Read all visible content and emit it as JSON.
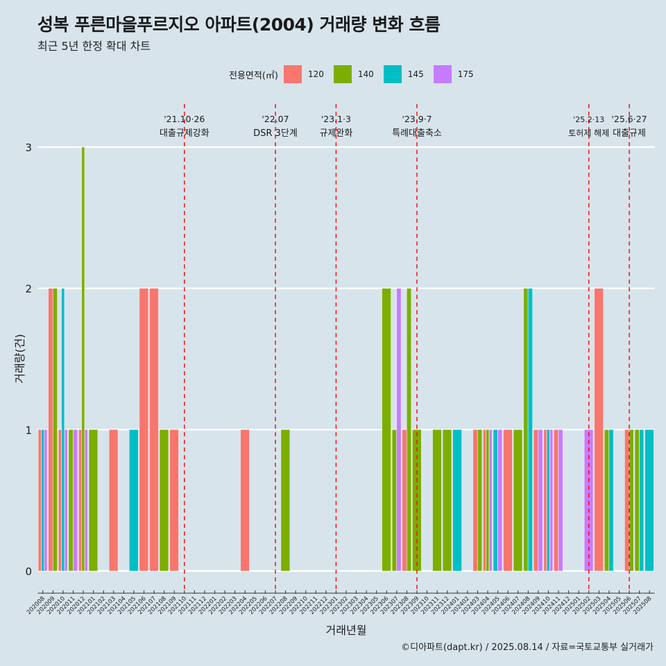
{
  "title": "성복 푸른마을푸르지오 아파트(2004) 거래량 변화 흐름",
  "subtitle": "최근 5년 한정 확대 차트",
  "legend_title": "전용면적(㎡)",
  "caption": "©디아파트(dapt.kr) / 2025.08.14 / 자료=국토교통부 실거래가",
  "colors": {
    "120": "#F8766D",
    "140": "#7CAE00",
    "145": "#00BFC4",
    "175": "#C77CFF",
    "background": "#d7e4ec",
    "event_line": "#ff0000"
  },
  "chart_data": {
    "type": "bar",
    "xlabel": "거래년월",
    "ylabel": "거래량(건)",
    "ylim": [
      0,
      3
    ],
    "yticks": [
      0,
      1,
      2,
      3
    ],
    "grid": true,
    "legend_position": "top",
    "categories": [
      "202008",
      "202009",
      "202010",
      "202011",
      "202012",
      "202101",
      "202102",
      "202103",
      "202104",
      "202105",
      "202106",
      "202107",
      "202108",
      "202109",
      "202110",
      "202111",
      "202112",
      "202201",
      "202202",
      "202203",
      "202204",
      "202205",
      "202206",
      "202207",
      "202208",
      "202209",
      "202210",
      "202211",
      "202212",
      "202301",
      "202302",
      "202303",
      "202304",
      "202305",
      "202306",
      "202307",
      "202308",
      "202309",
      "202310",
      "202311",
      "202312",
      "202401",
      "202402",
      "202403",
      "202404",
      "202405",
      "202406",
      "202407",
      "202408",
      "202409",
      "202410",
      "202411",
      "202412",
      "202501",
      "202502",
      "202503",
      "202504",
      "202505",
      "202506",
      "202507",
      "202508"
    ],
    "series": [
      {
        "name": "120",
        "points": [
          {
            "x": "202008",
            "y": 1
          },
          {
            "x": "202009",
            "y": 2
          },
          {
            "x": "202010",
            "y": 1
          },
          {
            "x": "202012",
            "y": 1
          },
          {
            "x": "202103",
            "y": 1
          },
          {
            "x": "202106",
            "y": 2
          },
          {
            "x": "202107",
            "y": 2
          },
          {
            "x": "202109",
            "y": 1
          },
          {
            "x": "202204",
            "y": 1
          },
          {
            "x": "202308",
            "y": 1
          },
          {
            "x": "202403",
            "y": 1
          },
          {
            "x": "202404",
            "y": 1
          },
          {
            "x": "202406",
            "y": 1
          },
          {
            "x": "202409",
            "y": 1
          },
          {
            "x": "202410",
            "y": 1
          },
          {
            "x": "202411",
            "y": 1
          },
          {
            "x": "202503",
            "y": 2
          },
          {
            "x": "202506",
            "y": 1
          }
        ]
      },
      {
        "name": "140",
        "points": [
          {
            "x": "202009",
            "y": 2
          },
          {
            "x": "202011",
            "y": 1
          },
          {
            "x": "202012",
            "y": 3
          },
          {
            "x": "202101",
            "y": 1
          },
          {
            "x": "202108",
            "y": 1
          },
          {
            "x": "202208",
            "y": 1
          },
          {
            "x": "202306",
            "y": 2
          },
          {
            "x": "202307",
            "y": 1
          },
          {
            "x": "202308",
            "y": 2
          },
          {
            "x": "202309",
            "y": 1
          },
          {
            "x": "202311",
            "y": 1
          },
          {
            "x": "202312",
            "y": 1
          },
          {
            "x": "202403",
            "y": 1
          },
          {
            "x": "202404",
            "y": 1
          },
          {
            "x": "202407",
            "y": 1
          },
          {
            "x": "202408",
            "y": 2
          },
          {
            "x": "202504",
            "y": 1
          },
          {
            "x": "202506",
            "y": 1
          },
          {
            "x": "202507",
            "y": 1
          }
        ]
      },
      {
        "name": "145",
        "points": [
          {
            "x": "202008",
            "y": 1
          },
          {
            "x": "202010",
            "y": 2
          },
          {
            "x": "202105",
            "y": 1
          },
          {
            "x": "202401",
            "y": 1
          },
          {
            "x": "202405",
            "y": 1
          },
          {
            "x": "202408",
            "y": 2
          },
          {
            "x": "202410",
            "y": 1
          },
          {
            "x": "202504",
            "y": 1
          },
          {
            "x": "202507",
            "y": 1
          },
          {
            "x": "202508",
            "y": 1
          }
        ]
      },
      {
        "name": "175",
        "points": [
          {
            "x": "202008",
            "y": 1
          },
          {
            "x": "202010",
            "y": 1
          },
          {
            "x": "202011",
            "y": 1
          },
          {
            "x": "202012",
            "y": 1
          },
          {
            "x": "202307",
            "y": 2
          },
          {
            "x": "202404",
            "y": 1
          },
          {
            "x": "202405",
            "y": 1
          },
          {
            "x": "202409",
            "y": 1
          },
          {
            "x": "202410",
            "y": 1
          },
          {
            "x": "202411",
            "y": 1
          },
          {
            "x": "202502",
            "y": 1
          }
        ]
      }
    ],
    "events": [
      {
        "x": "202110",
        "date": "'21.10·26",
        "label": "대출규제강화"
      },
      {
        "x": "202207",
        "date": "'22.07",
        "label": "DSR 3단계"
      },
      {
        "x": "202301",
        "date": "'23.1·3",
        "label": "규제완화"
      },
      {
        "x": "202309",
        "date": "'23.9·7",
        "label": "특례대출축소"
      },
      {
        "x": "202502",
        "date": "'25.2·13",
        "label": "토허제 해제"
      },
      {
        "x": "202506",
        "date": "'25.6·27",
        "label": "대출규제"
      }
    ]
  }
}
